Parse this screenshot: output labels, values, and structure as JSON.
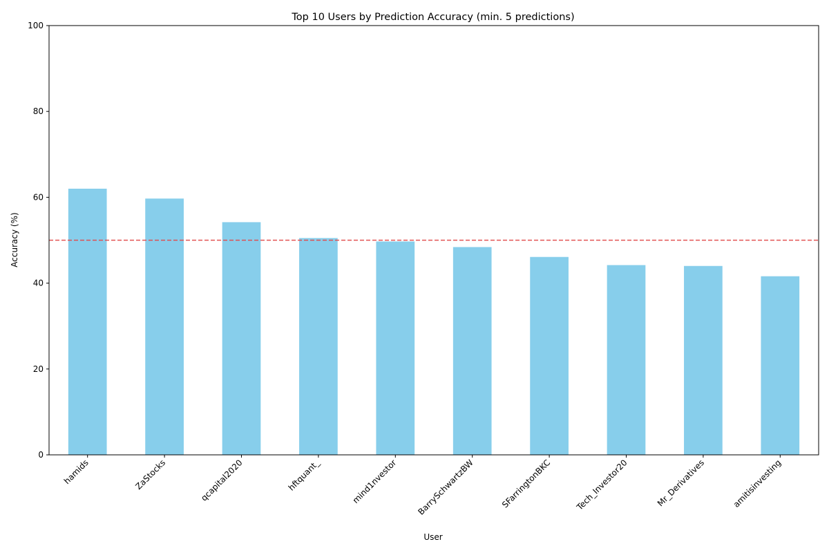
{
  "chart_data": {
    "type": "bar",
    "title": "Top 10 Users by Prediction Accuracy (min. 5 predictions)",
    "xlabel": "User",
    "ylabel": "Accuracy (%)",
    "categories": [
      "hamids",
      "ZaStocks",
      "qcapital2020",
      "hftquant_",
      "mind1nvestor",
      "BarrySchwartzBW",
      "SFarringtonBKC",
      "Tech_Investor20",
      "Mr_Derivatives",
      "amitisinvesting"
    ],
    "values": [
      62.0,
      59.7,
      54.2,
      50.5,
      49.7,
      48.4,
      46.1,
      44.2,
      44.0,
      41.6
    ],
    "ylim": [
      0,
      100
    ],
    "yticks": [
      0,
      20,
      40,
      60,
      80,
      100
    ],
    "reference_line": {
      "y": 50,
      "style": "dashed",
      "color": "#e24a4a"
    },
    "bar_color": "#87ceeb",
    "grid": false,
    "legend": "none"
  }
}
